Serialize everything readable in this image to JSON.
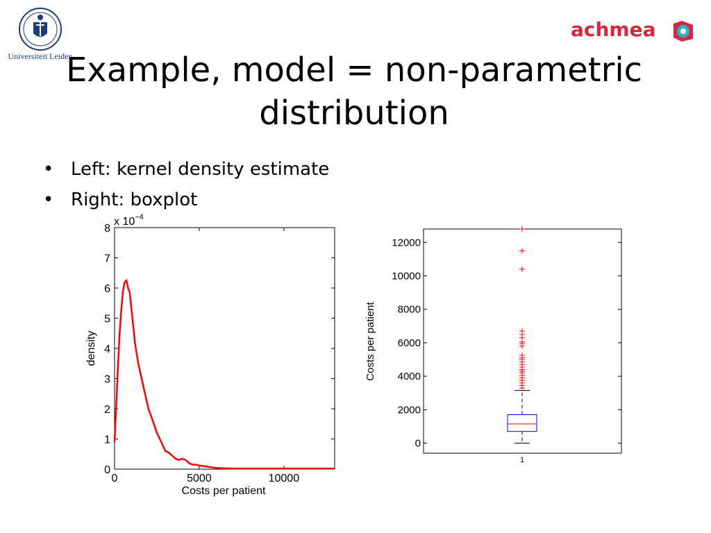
{
  "slide": {
    "title_line1": "Example, model = non-parametric",
    "title_line2": "distribution",
    "bullets": [
      {
        "symbol": "•",
        "text": "Left: kernel density estimate"
      },
      {
        "symbol": "•",
        "text": "Right: boxplot"
      }
    ]
  },
  "logos": {
    "leiden_text": "Universiteit Leiden",
    "achmea_text": "achmea",
    "leiden_color": "#1a3a7a",
    "achmea_color": "#d7263d",
    "achmea_icon_color": "#2bb3c9"
  },
  "chart_data": [
    {
      "type": "line",
      "title": "",
      "xlabel": "Costs per patient",
      "ylabel": "density",
      "scale_label": "x 10",
      "scale_exponent": "−4",
      "xlim": [
        0,
        13000
      ],
      "ylim": [
        0,
        8
      ],
      "x_ticks": [
        0,
        5000,
        10000
      ],
      "x_tick_labels": [
        "0",
        "5000",
        "10000"
      ],
      "y_ticks": [
        0,
        1,
        2,
        3,
        4,
        5,
        6,
        7,
        8
      ],
      "y_tick_labels": [
        "0",
        "1",
        "2",
        "3",
        "4",
        "5",
        "6",
        "7",
        "8"
      ],
      "series": [
        {
          "color": "#ff0000",
          "x": [
            0,
            100,
            200,
            300,
            400,
            500,
            600,
            700,
            800,
            900,
            1000,
            1200,
            1400,
            1600,
            1800,
            2000,
            2200,
            2500,
            2800,
            3000,
            3200,
            3400,
            3600,
            3800,
            4000,
            4200,
            4400,
            4600,
            4800,
            5000,
            5500,
            6000,
            6500,
            7000,
            8000,
            9000,
            10000,
            11000,
            12000,
            13000
          ],
          "y": [
            0.9,
            2.1,
            3.4,
            4.5,
            5.3,
            5.9,
            6.2,
            6.25,
            6.0,
            5.85,
            5.3,
            4.2,
            3.5,
            3.0,
            2.5,
            2.0,
            1.7,
            1.2,
            0.85,
            0.6,
            0.55,
            0.45,
            0.35,
            0.3,
            0.35,
            0.3,
            0.2,
            0.15,
            0.15,
            0.12,
            0.08,
            0.04,
            0.03,
            0.02,
            0.02,
            0.02,
            0.02,
            0.02,
            0.02,
            0.02
          ]
        }
      ]
    },
    {
      "type": "boxplot",
      "title": "",
      "xlabel": "",
      "ylabel": "Costs per patient",
      "categories": [
        "1"
      ],
      "ylim": [
        -600,
        12800
      ],
      "y_ticks": [
        0,
        2000,
        4000,
        6000,
        8000,
        10000,
        12000
      ],
      "y_tick_labels": [
        "0",
        "2000",
        "4000",
        "6000",
        "8000",
        "10000",
        "12000"
      ],
      "box": {
        "q1": 700,
        "median": 1150,
        "q3": 1700,
        "whisker_low": 0,
        "whisker_high": 3150
      },
      "box_color": "#0000ff",
      "median_color": "#ff0000",
      "whisker_color": "#000000",
      "outlier_color": "#ff0000",
      "outliers": [
        3300,
        3450,
        3600,
        3750,
        3900,
        4050,
        4200,
        4300,
        4400,
        4550,
        4700,
        4850,
        5000,
        5100,
        5250,
        5800,
        5950,
        6050,
        6300,
        6500,
        6700,
        10400,
        11500,
        12800
      ]
    }
  ]
}
